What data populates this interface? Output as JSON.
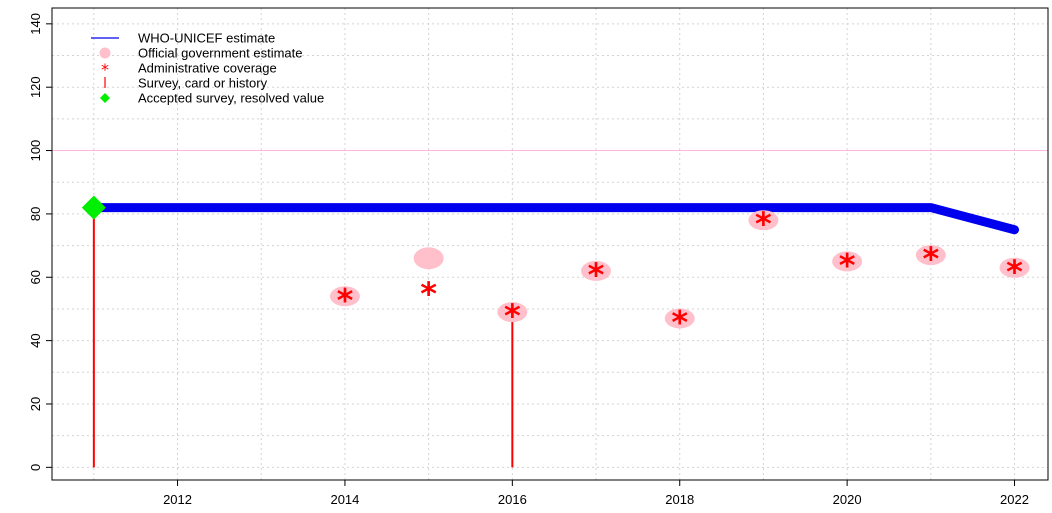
{
  "chart_data": {
    "type": "scatter",
    "title": "",
    "xlabel": "",
    "ylabel": "",
    "xlim": [
      2010.5,
      2022.4
    ],
    "ylim": [
      -4,
      145
    ],
    "x_ticks": [
      2012,
      2014,
      2016,
      2018,
      2020,
      2022
    ],
    "x_tick_labels": [
      "2012",
      "2014",
      "2016",
      "2018",
      "2020",
      "2022"
    ],
    "y_ticks": [
      0,
      20,
      40,
      60,
      80,
      100,
      120,
      140
    ],
    "y_tick_labels": [
      "0",
      "20",
      "40",
      "60",
      "80",
      "100",
      "120",
      "140"
    ],
    "grid": true,
    "reference_line": 100,
    "legend_position": "top-left",
    "legend": [
      {
        "label": "WHO-UNICEF estimate",
        "kind": "line",
        "color": "#0000ee"
      },
      {
        "label": "Official government estimate",
        "kind": "circle",
        "color": "#ffc0cb"
      },
      {
        "label": "Administrative coverage",
        "kind": "asterisk",
        "color": "#ff0000"
      },
      {
        "label": "Survey, card or history",
        "kind": "bar",
        "color": "#ff0000"
      },
      {
        "label": "Accepted survey, resolved value",
        "kind": "diamond",
        "color": "#00ee00"
      }
    ],
    "series": [
      {
        "name": "WHO-UNICEF estimate",
        "x": [
          2011,
          2012,
          2013,
          2014,
          2015,
          2016,
          2017,
          2018,
          2019,
          2020,
          2021,
          2022
        ],
        "values": [
          82,
          82,
          82,
          82,
          82,
          82,
          82,
          82,
          82,
          82,
          82,
          75
        ]
      },
      {
        "name": "Official government estimate",
        "x": [
          2014,
          2015,
          2016,
          2017,
          2018,
          2019,
          2020,
          2021,
          2022
        ],
        "values": [
          54,
          66,
          49,
          62,
          47,
          78,
          65,
          67,
          63
        ]
      },
      {
        "name": "Administrative coverage",
        "x": [
          2014,
          2015,
          2016,
          2017,
          2018,
          2019,
          2020,
          2021,
          2022
        ],
        "values": [
          54,
          56,
          49,
          62,
          47,
          78,
          65,
          67,
          63
        ]
      },
      {
        "name": "Survey, card or history",
        "x": [
          2011,
          2016
        ],
        "values": [
          82,
          49
        ]
      },
      {
        "name": "Accepted survey, resolved value",
        "x": [
          2011
        ],
        "values": [
          82
        ]
      }
    ]
  }
}
